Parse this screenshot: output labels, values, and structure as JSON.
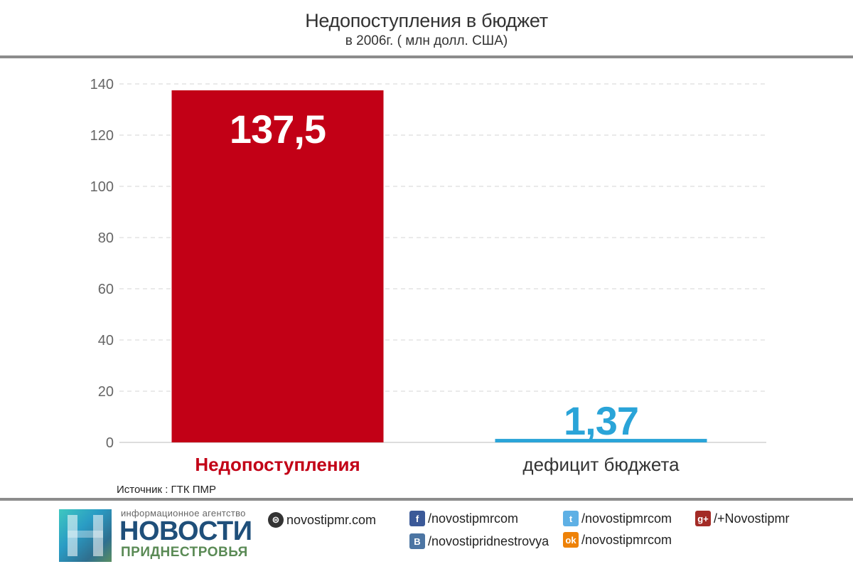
{
  "chart_data": {
    "type": "bar",
    "title": "Недопоступления в бюджет",
    "subtitle": "в 2006г. ( млн долл. США)",
    "categories": [
      "Недопоступления",
      "дефицит бюджета"
    ],
    "values": [
      137.5,
      1.37
    ],
    "value_labels": [
      "137,5",
      "1,37"
    ],
    "bar_colors": [
      "#c20016",
      "#2aa4d8"
    ],
    "category_label_colors": [
      "#c20016",
      "#333333"
    ],
    "value_label_colors": [
      "#ffffff",
      "#2aa4d8"
    ],
    "ylim": [
      0,
      140
    ],
    "yticks": [
      0,
      20,
      40,
      60,
      80,
      100,
      120,
      140
    ],
    "grid": true,
    "legend": "none"
  },
  "source": "Источник : ГТК ПМР",
  "footer": {
    "logo_small": "информационное агентство",
    "logo_big": "НОВОСТИ",
    "logo_region": "ПРИДНЕСТРОВЬЯ",
    "links": {
      "web": {
        "icon": "globe-icon",
        "text": "novostipmr.com"
      },
      "facebook": {
        "icon": "facebook-icon",
        "text": "/novostipmrcom"
      },
      "vk": {
        "icon": "vk-icon",
        "text": "/novostipridnestrovya"
      },
      "twitter": {
        "icon": "twitter-icon",
        "text": "/novostipmrcom"
      },
      "odnoklassniki": {
        "icon": "odnoklassniki-icon",
        "text": "/novostipmrcom"
      },
      "googleplus": {
        "icon": "google-plus-icon",
        "text": "/+Novostipmr"
      }
    }
  }
}
